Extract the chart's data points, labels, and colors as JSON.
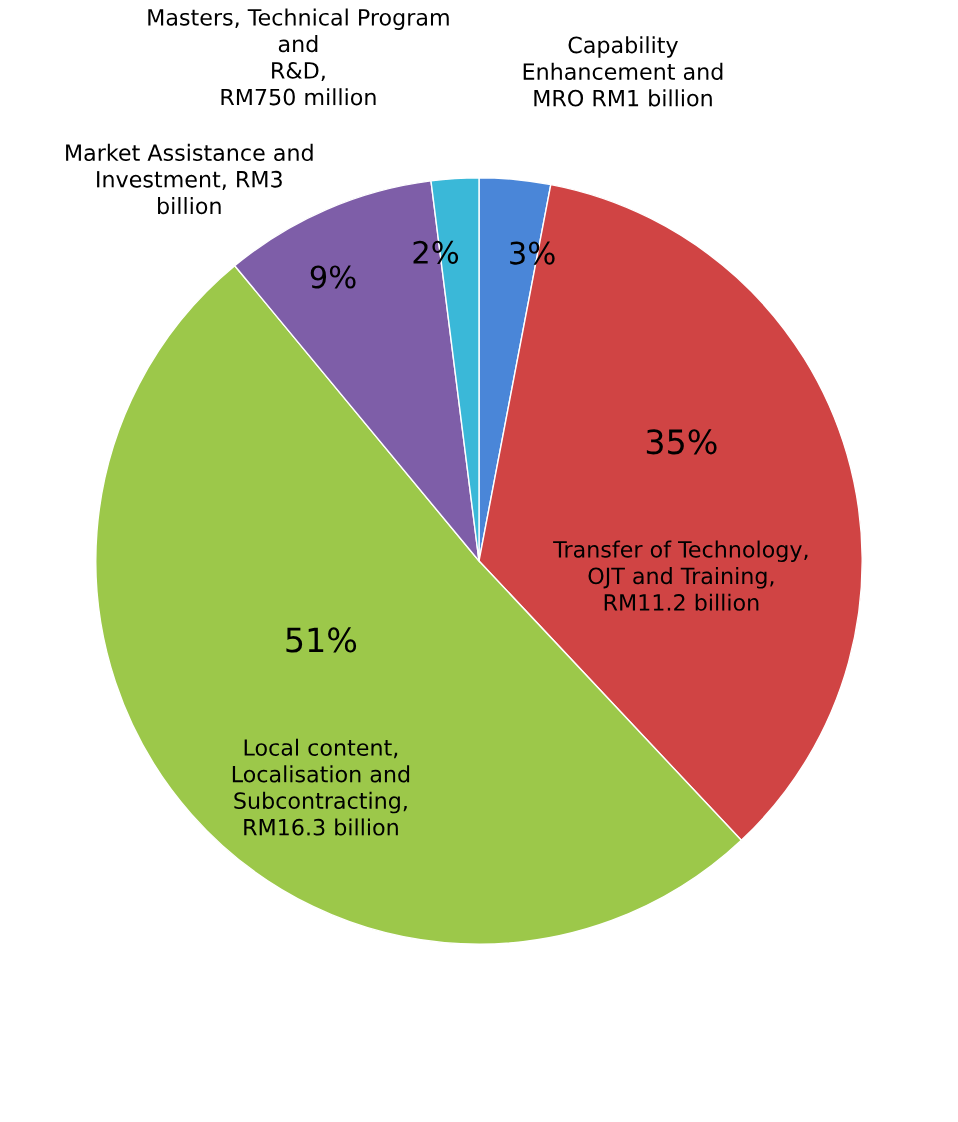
{
  "chart_data": {
    "type": "pie",
    "categories": [
      "Capability\nEnhancement and\nMRO RM1 billion",
      "Transfer of Technology,\nOJT and Training,\nRM11.2 billion",
      "Local content,\nLocalisation and\nSubcontracting,\nRM16.3 billion",
      "Market Assistance and\nInvestment, RM3\nbillion",
      "Masters, Technical Program\nand\nR&D,\nRM750 million"
    ],
    "values": [
      3,
      35,
      51,
      9,
      2
    ],
    "value_labels": [
      "3%",
      "35%",
      "51%",
      "9%",
      "2%"
    ],
    "colors": [
      "#4a86d8",
      "#d04444",
      "#9cc84a",
      "#7e5ea8",
      "#3ab8d8"
    ]
  }
}
